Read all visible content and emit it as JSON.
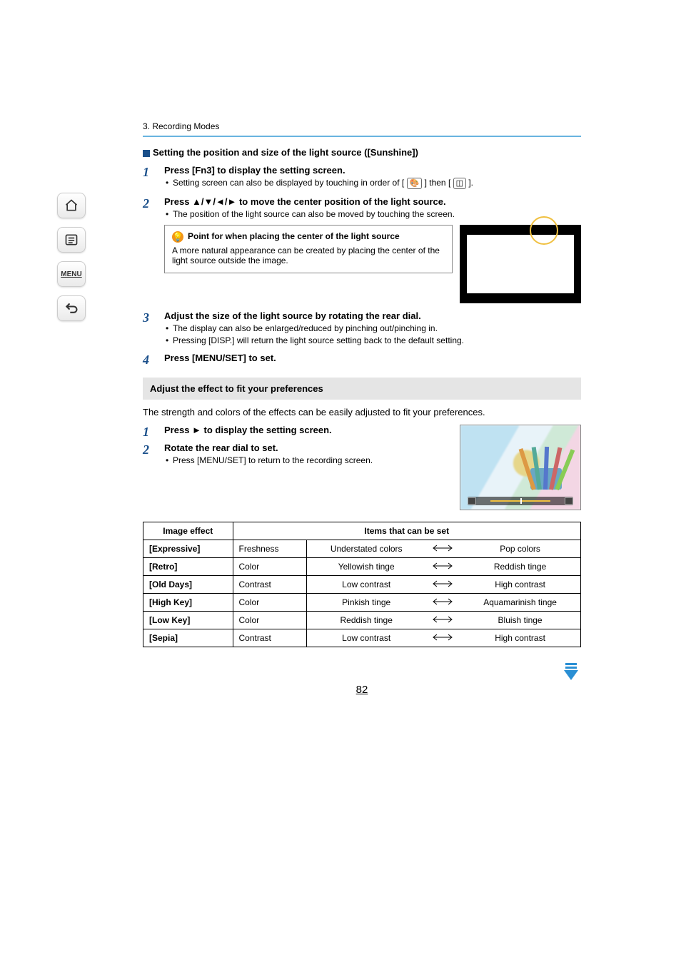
{
  "breadcrumb": "3. Recording Modes",
  "section1": {
    "title": "Setting the position and size of the light source ([Sunshine])",
    "steps": [
      {
        "title": "Press [Fn3] to display the setting screen.",
        "bullets": [
          "Setting screen can also be displayed by touching in order of [ "
        ],
        "bullet_mid": " ] then [ ",
        "bullet_end": " ]."
      },
      {
        "title": "Press ▲/▼/◄/► to move the center position of the light source.",
        "bullets": [
          "The position of the light source can also be moved by touching the screen."
        ],
        "tip_title": "Point for when placing the center of the light source",
        "tip_body": "A more natural appearance can be created by placing the center of the light source outside the image."
      },
      {
        "title": "Adjust the size of the light source by rotating the rear dial.",
        "bullets": [
          "The display can also be enlarged/reduced by pinching out/pinching in.",
          "Pressing [DISP.] will return the light source setting back to the default setting."
        ]
      },
      {
        "title": "Press [MENU/SET] to set."
      }
    ]
  },
  "section2": {
    "band": "Adjust the effect to fit your preferences",
    "intro": "The strength and colors of the effects can be easily adjusted to fit your preferences.",
    "steps": [
      {
        "title": "Press ► to display the setting screen."
      },
      {
        "title": "Rotate the rear dial to set.",
        "bullets": [
          "Press [MENU/SET] to return to the recording screen."
        ]
      }
    ]
  },
  "table": {
    "headers": [
      "Image effect",
      "Items that can be set"
    ],
    "rows": [
      {
        "effect": "[Expressive]",
        "item": "Freshness",
        "left": "Understated colors",
        "right": "Pop colors"
      },
      {
        "effect": "[Retro]",
        "item": "Color",
        "left": "Yellowish tinge",
        "right": "Reddish tinge"
      },
      {
        "effect": "[Old Days]",
        "item": "Contrast",
        "left": "Low contrast",
        "right": "High contrast"
      },
      {
        "effect": "[High Key]",
        "item": "Color",
        "left": "Pinkish tinge",
        "right": "Aquamarinish tinge"
      },
      {
        "effect": "[Low Key]",
        "item": "Color",
        "left": "Reddish tinge",
        "right": "Bluish tinge"
      },
      {
        "effect": "[Sepia]",
        "item": "Contrast",
        "left": "Low contrast",
        "right": "High contrast"
      }
    ]
  },
  "icons": {
    "palette": "⚙",
    "grid": "▦"
  },
  "sidebar": {
    "menu": "MENU"
  },
  "page_number": "82",
  "colors": {
    "accent_blue": "#1a4f8a",
    "border_blue": "#68b4e0",
    "tip_orange": "#f29518",
    "sun_yellow": "#f0c040"
  }
}
